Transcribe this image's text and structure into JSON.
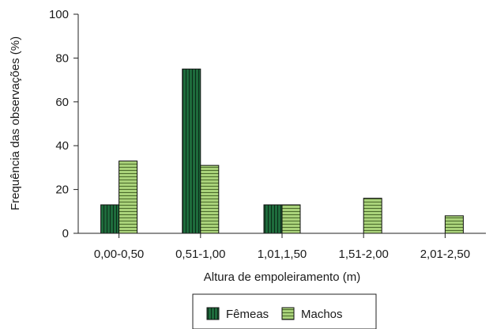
{
  "chart_data": {
    "type": "bar",
    "categories": [
      "0,00-0,50",
      "0,51-1,00",
      "1,01,1,50",
      "1,51-2,00",
      "2,01-2,50"
    ],
    "series": [
      {
        "name": "Fêmeas",
        "values": [
          13,
          75,
          13,
          0,
          0
        ],
        "color": "#1e6b3c",
        "stripe": "#0b2a17"
      },
      {
        "name": "Machos",
        "values": [
          33,
          31,
          13,
          16,
          8
        ],
        "color": "#a9d27a",
        "stripe": "#4a6a2a"
      }
    ],
    "title": "",
    "xlabel": "Altura de empoleiramento (m)",
    "ylabel": "Frequência das observações (%)",
    "ylim": [
      0,
      100
    ],
    "yticks": [
      "0",
      "20",
      "40",
      "60",
      "80",
      "100"
    ],
    "legend_position": "bottom-center",
    "grid": false
  }
}
